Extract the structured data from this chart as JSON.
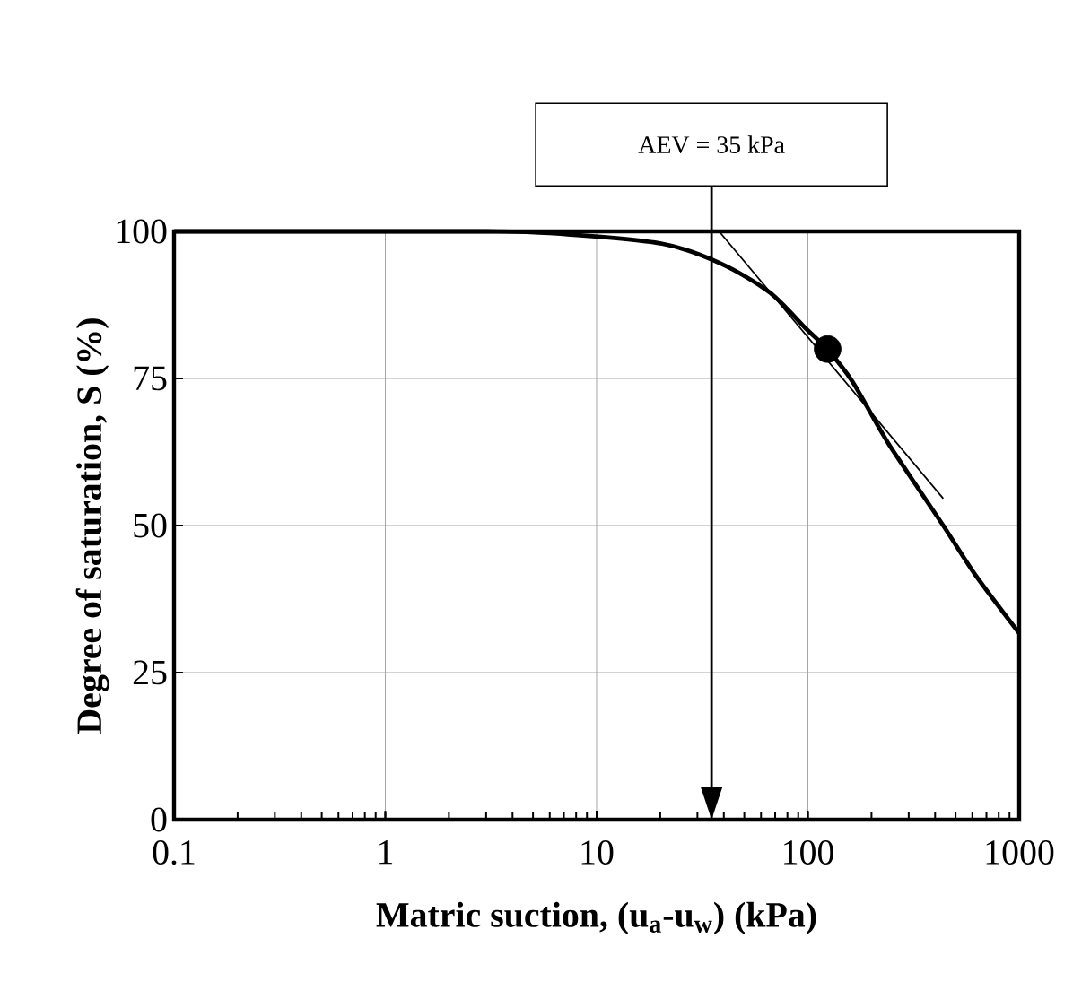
{
  "chart_data": {
    "type": "line",
    "xlabel": "Matric suction, (u$_{a}$-u$_{w}$)  (kPa)",
    "ylabel": "Degree of saturation, S (%)",
    "log": "x",
    "xlim": [
      0.1,
      1000
    ],
    "xticks": [
      0.1,
      1,
      10,
      100,
      1000
    ],
    "ylim": [
      0,
      100
    ],
    "yticks": [
      0,
      25,
      50,
      75,
      100
    ],
    "grid": true,
    "marker": "none",
    "series": [
      {
        "type": "line",
        "color": "#000000",
        "x": [
          0.1,
          1,
          3,
          6,
          20.4,
          38.9,
          66,
          97.7,
          124,
          163,
          240,
          437,
          615,
          1000
        ],
        "values": [
          100,
          100,
          100,
          99.7,
          97.9,
          94.5,
          89.6,
          83.5,
          79.9,
          74.4,
          64,
          50,
          41.8,
          31.7
        ]
      },
      {
        "type": "line",
        "color": "#000000",
        "x": [
          38,
          437
        ],
        "values": [
          100,
          54.6
        ]
      },
      {
        "type": "scatter",
        "marker": "circle",
        "color": "#000000",
        "x": [
          124
        ],
        "values": [
          80
        ]
      }
    ],
    "ref_lines": [
      {
        "axis": "x",
        "value": 35,
        "label": "AEV = 35 kPa"
      }
    ]
  }
}
